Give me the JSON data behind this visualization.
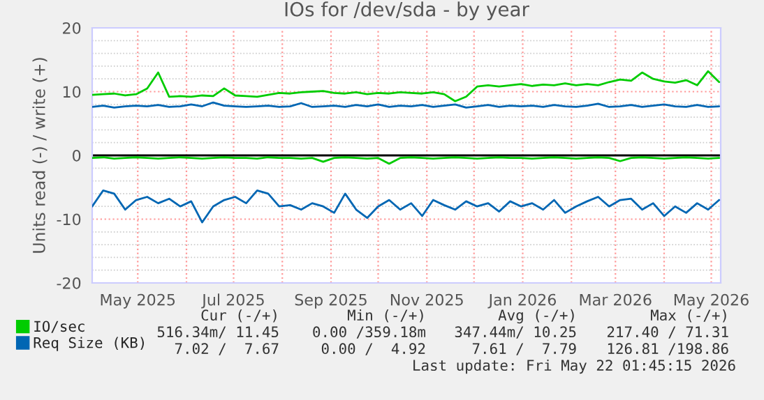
{
  "chart_data": {
    "type": "line",
    "title": "IOs for /dev/sda - by year",
    "ylabel": "Units read (-) / write (+)",
    "x": [
      "2025-04-02",
      "2025-04-09",
      "2025-04-16",
      "2025-04-23",
      "2025-04-30",
      "2025-05-07",
      "2025-05-14",
      "2025-05-21",
      "2025-05-28",
      "2025-06-04",
      "2025-06-11",
      "2025-06-18",
      "2025-06-25",
      "2025-07-02",
      "2025-07-09",
      "2025-07-16",
      "2025-07-23",
      "2025-07-30",
      "2025-08-06",
      "2025-08-13",
      "2025-08-20",
      "2025-08-27",
      "2025-09-03",
      "2025-09-10",
      "2025-09-17",
      "2025-09-24",
      "2025-10-01",
      "2025-10-08",
      "2025-10-15",
      "2025-10-22",
      "2025-10-29",
      "2025-11-05",
      "2025-11-12",
      "2025-11-19",
      "2025-11-26",
      "2025-12-03",
      "2025-12-10",
      "2025-12-17",
      "2025-12-24",
      "2025-12-31",
      "2026-01-07",
      "2026-01-14",
      "2026-01-21",
      "2026-01-28",
      "2026-02-04",
      "2026-02-11",
      "2026-02-18",
      "2026-02-25",
      "2026-03-04",
      "2026-03-11",
      "2026-03-18",
      "2026-03-25",
      "2026-04-01",
      "2026-04-08",
      "2026-04-15",
      "2026-04-22",
      "2026-04-29",
      "2026-05-06"
    ],
    "series": [
      {
        "name": "IO/sec",
        "color": "#00cc00",
        "values": [
          9.5,
          9.6,
          9.7,
          9.4,
          9.6,
          10.5,
          13.0,
          9.2,
          9.3,
          9.2,
          9.4,
          9.3,
          10.5,
          9.4,
          9.3,
          9.2,
          9.5,
          9.8,
          9.7,
          9.9,
          10.0,
          10.1,
          9.8,
          9.7,
          9.9,
          9.6,
          9.8,
          9.7,
          9.9,
          9.8,
          9.7,
          9.9,
          9.6,
          8.5,
          9.2,
          10.8,
          11.0,
          10.8,
          11.0,
          11.2,
          10.9,
          11.1,
          11.0,
          11.3,
          11.0,
          11.2,
          11.0,
          11.5,
          11.9,
          11.7,
          13.0,
          12.0,
          11.6,
          11.4,
          11.8,
          11.0,
          13.2,
          11.5
        ]
      },
      {
        "color": "#00cc00",
        "values": [
          -0.4,
          -0.3,
          -0.5,
          -0.4,
          -0.3,
          -0.4,
          -0.5,
          -0.4,
          -0.3,
          -0.4,
          -0.5,
          -0.4,
          -0.3,
          -0.4,
          -0.4,
          -0.5,
          -0.3,
          -0.4,
          -0.4,
          -0.5,
          -0.4,
          -1.0,
          -0.4,
          -0.3,
          -0.4,
          -0.5,
          -0.4,
          -1.3,
          -0.4,
          -0.3,
          -0.4,
          -0.5,
          -0.4,
          -0.3,
          -0.4,
          -0.5,
          -0.4,
          -0.3,
          -0.4,
          -0.4,
          -0.5,
          -0.4,
          -0.3,
          -0.4,
          -0.5,
          -0.4,
          -0.3,
          -0.4,
          -0.9,
          -0.4,
          -0.3,
          -0.4,
          -0.5,
          -0.4,
          -0.3,
          -0.4,
          -0.5,
          -0.4
        ]
      },
      {
        "name": "Req Size (KB)",
        "color": "#0066b3",
        "values": [
          7.6,
          7.8,
          7.5,
          7.7,
          7.8,
          7.7,
          7.9,
          7.6,
          7.7,
          8.0,
          7.7,
          8.3,
          7.8,
          7.7,
          7.6,
          7.7,
          7.8,
          7.6,
          7.7,
          8.2,
          7.6,
          7.7,
          7.8,
          7.6,
          7.9,
          7.7,
          8.0,
          7.6,
          7.8,
          7.7,
          7.9,
          7.6,
          7.8,
          8.0,
          7.5,
          7.7,
          7.9,
          7.6,
          7.8,
          7.7,
          7.8,
          7.6,
          7.9,
          7.7,
          7.6,
          7.8,
          8.1,
          7.6,
          7.7,
          7.9,
          7.6,
          7.8,
          8.0,
          7.7,
          7.6,
          7.9,
          7.6,
          7.7
        ]
      },
      {
        "color": "#0066b3",
        "values": [
          -8.0,
          -5.5,
          -6.0,
          -8.5,
          -7.0,
          -6.5,
          -7.5,
          -6.8,
          -8.0,
          -7.2,
          -10.5,
          -8.0,
          -7.0,
          -6.5,
          -7.5,
          -5.5,
          -6.0,
          -8.0,
          -7.8,
          -8.5,
          -7.5,
          -8.0,
          -9.0,
          -6.0,
          -8.5,
          -9.8,
          -8.0,
          -7.0,
          -8.5,
          -7.5,
          -9.5,
          -7.0,
          -7.8,
          -8.5,
          -7.2,
          -8.0,
          -7.5,
          -8.8,
          -7.2,
          -8.0,
          -7.5,
          -8.5,
          -7.0,
          -9.0,
          -8.0,
          -7.2,
          -6.5,
          -8.0,
          -7.0,
          -6.8,
          -8.5,
          -7.5,
          -9.5,
          -8.0,
          -9.0,
          -7.5,
          -8.5,
          -7.0
        ]
      }
    ],
    "xlim": [
      "2025-04-02",
      "2026-05-07"
    ],
    "xticks": [
      {
        "value": "2025-05-01",
        "label": "May 2025"
      },
      {
        "value": "2025-06-01",
        "label": null
      },
      {
        "value": "2025-07-01",
        "label": "Jul 2025"
      },
      {
        "value": "2025-08-01",
        "label": null
      },
      {
        "value": "2025-09-01",
        "label": "Sep 2025"
      },
      {
        "value": "2025-10-01",
        "label": null
      },
      {
        "value": "2025-11-01",
        "label": "Nov 2025"
      },
      {
        "value": "2025-12-01",
        "label": null
      },
      {
        "value": "2026-01-01",
        "label": "Jan 2026"
      },
      {
        "value": "2026-02-01",
        "label": null
      },
      {
        "value": "2026-03-01",
        "label": "Mar 2026"
      },
      {
        "value": "2026-04-01",
        "label": null
      },
      {
        "value": "2026-05-01",
        "label": "May 2026"
      }
    ],
    "ylim": [
      -20,
      20
    ],
    "yticks": [
      -20,
      -10,
      0,
      10,
      20
    ],
    "ref_lines": [
      {
        "axis": "y",
        "value": 0,
        "color": "#000000"
      }
    ],
    "grid": true,
    "legend": "bottom left",
    "marker": "none",
    "line_style": "solid",
    "annotations": [
      "Cur (-/+)",
      "Min (-/+)",
      "Avg (-/+)",
      "Max (-/+)",
      "516.34m/ 11.45",
      "0.00 /359.18m",
      "347.44m/ 10.25",
      "217.40 / 71.31",
      "7.02 /  7.67",
      "0.00 /  4.92",
      "7.61 /  7.79",
      "126.81 /198.86",
      "Last update: Fri May 22 01:45:15 2026"
    ]
  }
}
